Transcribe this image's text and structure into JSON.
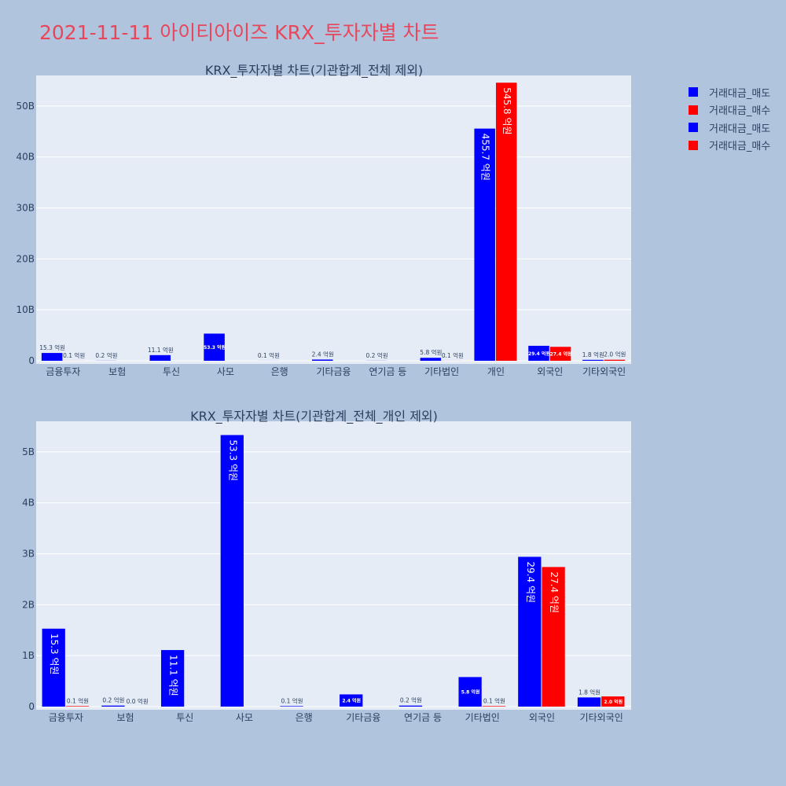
{
  "page": {
    "title": "2021-11-11 아이티아이즈 KRX_투자자별 차트"
  },
  "legend": {
    "items": [
      {
        "label": "거래대금_매도",
        "color": "#0000ff"
      },
      {
        "label": "거래대금_매수",
        "color": "#ff0000"
      },
      {
        "label": "거래대금_매도",
        "color": "#0000ff"
      },
      {
        "label": "거래대금_매수",
        "color": "#ff0000"
      }
    ]
  },
  "colors": {
    "sell": "#0000ff",
    "buy": "#ff0000",
    "plot_bg": "#e5ecf6",
    "page_bg": "#b0c4de"
  },
  "chart_data": [
    {
      "type": "bar",
      "title": "KRX_투자자별 차트(기관합계_전체 제외)",
      "categories": [
        "금융투자",
        "보험",
        "투신",
        "사모",
        "은행",
        "기타금융",
        "연기금 등",
        "기타법인",
        "개인",
        "외국인",
        "기타외국인"
      ],
      "ylim": [
        0,
        56
      ],
      "yticks": [
        0,
        10,
        20,
        30,
        40,
        50
      ],
      "ytick_labels": [
        "0",
        "10B",
        "20B",
        "30B",
        "40B",
        "50B"
      ],
      "series": [
        {
          "name": "거래대금_매도",
          "values": [
            1.53,
            0.02,
            1.11,
            5.33,
            0.01,
            0.24,
            0.02,
            0.58,
            45.57,
            2.94,
            0.18
          ],
          "labels": [
            "15.3 억원",
            "0.2 억원",
            "11.1 억원",
            "53.3 억원",
            "0.1 억원",
            "2.4 억원",
            "0.2 억원",
            "5.8 억원",
            "455.7 억원",
            "29.4 억원",
            "1.8 억원"
          ]
        },
        {
          "name": "거래대금_매수",
          "values": [
            0.01,
            0,
            0,
            0,
            0,
            0,
            0,
            0.01,
            54.58,
            2.74,
            0.2
          ],
          "labels": [
            "0.1 억원",
            "",
            "",
            "",
            "",
            "",
            "",
            "0.1 억원",
            "545.8 억원",
            "27.4 억원",
            "2.0 억원"
          ]
        }
      ]
    },
    {
      "type": "bar",
      "title": "KRX_투자자별 차트(기관합계_전체_개인 제외)",
      "categories": [
        "금융투자",
        "보험",
        "투신",
        "사모",
        "은행",
        "기타금융",
        "연기금 등",
        "기타법인",
        "외국인",
        "기타외국인"
      ],
      "ylim": [
        0,
        5.6
      ],
      "yticks": [
        0,
        1,
        2,
        3,
        4,
        5
      ],
      "ytick_labels": [
        "0",
        "1B",
        "2B",
        "3B",
        "4B",
        "5B"
      ],
      "series": [
        {
          "name": "거래대금_매도",
          "values": [
            1.53,
            0.02,
            1.11,
            5.33,
            0.01,
            0.24,
            0.02,
            0.58,
            2.94,
            0.18
          ],
          "labels": [
            "15.3 억원",
            "0.2 억원",
            "11.1 억원",
            "53.3 억원",
            "0.1 억원",
            "2.4 억원",
            "0.2 억원",
            "5.8 억원",
            "29.4 억원",
            "1.8 억원"
          ]
        },
        {
          "name": "거래대금_매수",
          "values": [
            0.01,
            0.0,
            0,
            0,
            0,
            0,
            0,
            0.01,
            2.74,
            0.2
          ],
          "labels": [
            "0.1 억원",
            "0.0 억원",
            "",
            "",
            "",
            "",
            "",
            "0.1 억원",
            "27.4 억원",
            "2.0 억원"
          ]
        }
      ]
    }
  ]
}
